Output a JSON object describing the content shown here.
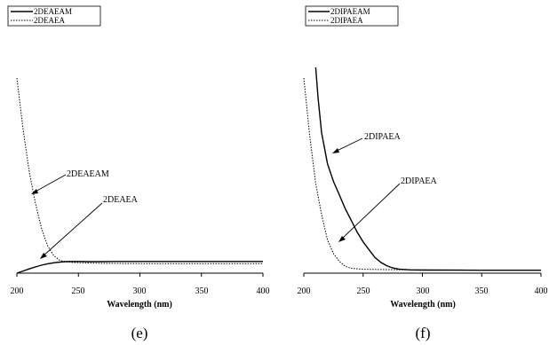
{
  "chart_data": [
    {
      "type": "line",
      "panel_label": "(e)",
      "xlabel": "Wavelength (nm)",
      "ylabel": "",
      "xlim": [
        200,
        400
      ],
      "ylim": [
        0,
        1
      ],
      "x_ticks": [
        200,
        250,
        300,
        350,
        400
      ],
      "legend_position": "top-left",
      "series": [
        {
          "name": "2DEAEAM",
          "style": "solid",
          "color": "#000000",
          "x": [
            200,
            205,
            210,
            215,
            220,
            225,
            230,
            235,
            240,
            245,
            250,
            260,
            270,
            280,
            300,
            350,
            400
          ],
          "y": [
            0.0,
            0.011,
            0.022,
            0.032,
            0.041,
            0.048,
            0.053,
            0.057,
            0.059,
            0.06,
            0.06,
            0.059,
            0.059,
            0.06,
            0.06,
            0.06,
            0.06
          ]
        },
        {
          "name": "2DEAEA",
          "style": "dotted",
          "color": "#000000",
          "x": [
            200,
            205,
            210,
            215,
            220,
            225,
            230,
            235,
            240,
            245,
            250,
            260,
            270,
            280,
            300,
            350,
            400
          ],
          "y": [
            1.0,
            0.74,
            0.52,
            0.36,
            0.23,
            0.14,
            0.09,
            0.065,
            0.058,
            0.055,
            0.054,
            0.052,
            0.05,
            0.05,
            0.049,
            0.049,
            0.049
          ]
        }
      ],
      "annotations": [
        {
          "text": "2DEAEAM",
          "target_x": 210,
          "target_y": 0.41
        },
        {
          "text": "2DEAEA",
          "target_x": 223,
          "target_y": 0.046
        }
      ]
    },
    {
      "type": "line",
      "panel_label": "(f)",
      "xlabel": "Wavelength (nm)",
      "ylabel": "",
      "xlim": [
        200,
        400
      ],
      "ylim": [
        0,
        1
      ],
      "x_ticks": [
        200,
        250,
        300,
        350,
        400
      ],
      "legend_position": "top-left",
      "series": [
        {
          "name": "2DIPAEAM",
          "style": "solid",
          "color": "#000000",
          "x": [
            210,
            212,
            215,
            220,
            225,
            230,
            235,
            240,
            245,
            250,
            255,
            260,
            265,
            270,
            275,
            280,
            290,
            300,
            350,
            400
          ],
          "y": [
            1.07,
            0.9,
            0.72,
            0.56,
            0.47,
            0.4,
            0.33,
            0.27,
            0.21,
            0.16,
            0.12,
            0.08,
            0.055,
            0.038,
            0.027,
            0.021,
            0.017,
            0.016,
            0.015,
            0.015
          ]
        },
        {
          "name": "2DIPAEA",
          "style": "dotted",
          "color": "#000000",
          "x": [
            200,
            202,
            205,
            210,
            215,
            220,
            225,
            230,
            235,
            240,
            250,
            260,
            270,
            300,
            350,
            400
          ],
          "y": [
            1.0,
            0.88,
            0.7,
            0.46,
            0.3,
            0.17,
            0.1,
            0.06,
            0.035,
            0.025,
            0.02,
            0.019,
            0.018,
            0.017,
            0.016,
            0.016
          ]
        }
      ],
      "annotations": [
        {
          "text": "2DIPAEA",
          "target_x": 224,
          "target_y": 0.49
        },
        {
          "text": "2DIPAEA",
          "target_x": 226,
          "target_y": 0.09
        }
      ]
    }
  ]
}
